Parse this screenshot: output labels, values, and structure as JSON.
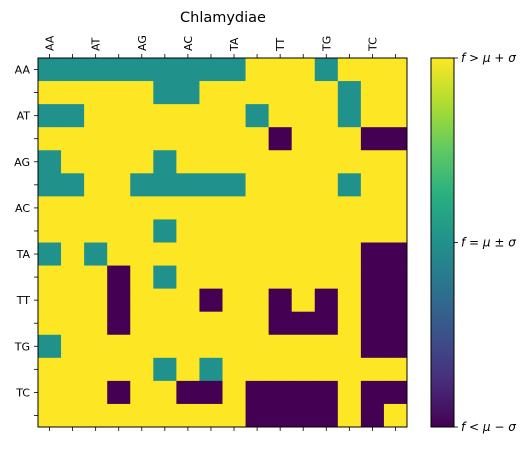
{
  "chart_data": {
    "type": "heatmap",
    "title": "Chlamydiae",
    "x_tick_labels": [
      "AA",
      "AT",
      "AG",
      "AC",
      "TA",
      "TT",
      "TG",
      "TC"
    ],
    "y_tick_labels": [
      "AA",
      "AT",
      "AG",
      "AC",
      "TA",
      "TT",
      "TG",
      "TC"
    ],
    "x_tick_position": "top",
    "x_tick_label_rotation": 90,
    "rows": 16,
    "cols": 16,
    "value_legend": {
      "0": "low",
      "1": "mid",
      "2": "high"
    },
    "matrix": [
      [
        1,
        1,
        1,
        1,
        1,
        1,
        1,
        1,
        1,
        2,
        2,
        2,
        1,
        2,
        2,
        2
      ],
      [
        2,
        2,
        2,
        2,
        2,
        1,
        1,
        2,
        2,
        2,
        2,
        2,
        2,
        1,
        2,
        2
      ],
      [
        1,
        1,
        2,
        2,
        2,
        2,
        2,
        2,
        2,
        1,
        2,
        2,
        2,
        1,
        2,
        2
      ],
      [
        2,
        2,
        2,
        2,
        2,
        2,
        2,
        2,
        2,
        2,
        0,
        2,
        2,
        2,
        0,
        0
      ],
      [
        1,
        2,
        2,
        2,
        2,
        1,
        2,
        2,
        2,
        2,
        2,
        2,
        2,
        2,
        2,
        2
      ],
      [
        1,
        1,
        2,
        2,
        1,
        1,
        1,
        1,
        1,
        2,
        2,
        2,
        2,
        1,
        2,
        2
      ],
      [
        2,
        2,
        2,
        2,
        2,
        2,
        2,
        2,
        2,
        2,
        2,
        2,
        2,
        2,
        2,
        2
      ],
      [
        2,
        2,
        2,
        2,
        2,
        1,
        2,
        2,
        2,
        2,
        2,
        2,
        2,
        2,
        2,
        2
      ],
      [
        1,
        2,
        1,
        2,
        2,
        2,
        2,
        2,
        2,
        2,
        2,
        2,
        2,
        2,
        0,
        0
      ],
      [
        2,
        2,
        2,
        0,
        2,
        1,
        2,
        2,
        2,
        2,
        2,
        2,
        2,
        2,
        0,
        0
      ],
      [
        2,
        2,
        2,
        0,
        2,
        2,
        2,
        0,
        2,
        2,
        0,
        2,
        0,
        2,
        0,
        0
      ],
      [
        2,
        2,
        2,
        0,
        2,
        2,
        2,
        2,
        2,
        2,
        0,
        0,
        0,
        2,
        0,
        0
      ],
      [
        1,
        2,
        2,
        2,
        2,
        2,
        2,
        2,
        2,
        2,
        2,
        2,
        2,
        2,
        0,
        0
      ],
      [
        2,
        2,
        2,
        2,
        2,
        1,
        2,
        1,
        2,
        2,
        2,
        2,
        2,
        2,
        2,
        2
      ],
      [
        2,
        2,
        2,
        0,
        2,
        2,
        0,
        0,
        2,
        0,
        0,
        0,
        0,
        2,
        0,
        0
      ],
      [
        2,
        2,
        2,
        2,
        2,
        2,
        2,
        2,
        2,
        0,
        0,
        0,
        0,
        2,
        0,
        2
      ]
    ],
    "colors": {
      "low": "#440154",
      "mid": "#21918c",
      "high": "#fde725"
    },
    "colorbar": {
      "ticks": [
        {
          "value": 0,
          "label": "f < μ − σ"
        },
        {
          "value": 1,
          "label": "f = μ ± σ"
        },
        {
          "value": 2,
          "label": "f > μ + σ"
        }
      ],
      "range": [
        0,
        2
      ],
      "colormap": "viridis"
    }
  }
}
